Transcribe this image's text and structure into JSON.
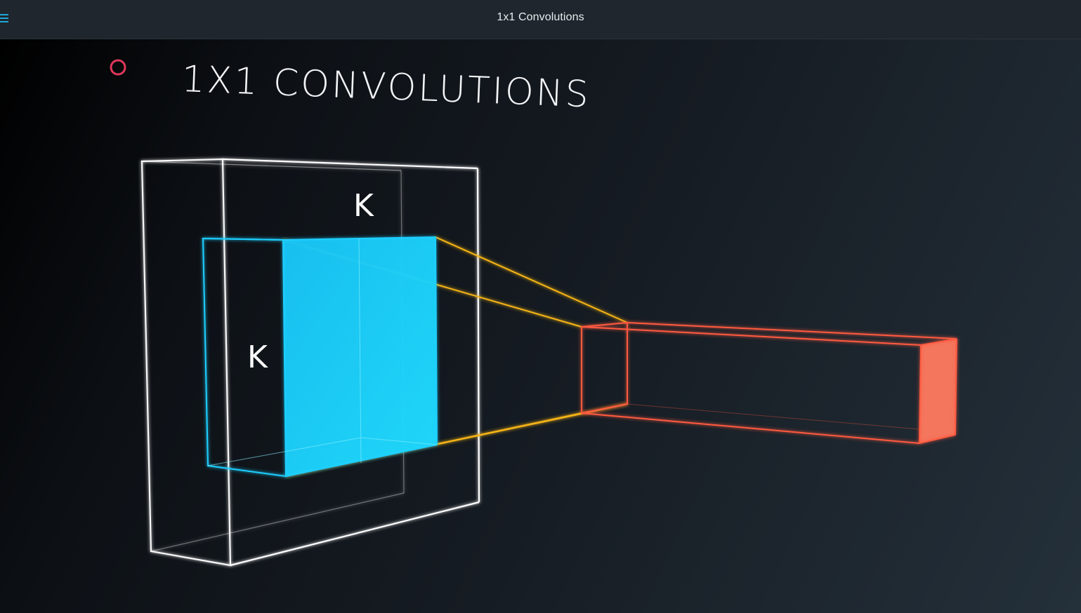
{
  "window": {
    "title": "1x1 Convolutions"
  },
  "header": {
    "menu_icon": "hamburger-menu-icon",
    "accent_color": "#1ea7d8"
  },
  "slide": {
    "title": "1X1 CONVOLUTIONS",
    "label_top": "K",
    "label_left": "K",
    "bullet_icon": "ring-bullet-icon",
    "colors": {
      "bullet": "#e0375c",
      "input_volume": "#ffffff",
      "patch": "#1ecfff",
      "projection": "#f5b418",
      "output_column": "#ff5a40",
      "output_face": "#ff7a60"
    }
  }
}
